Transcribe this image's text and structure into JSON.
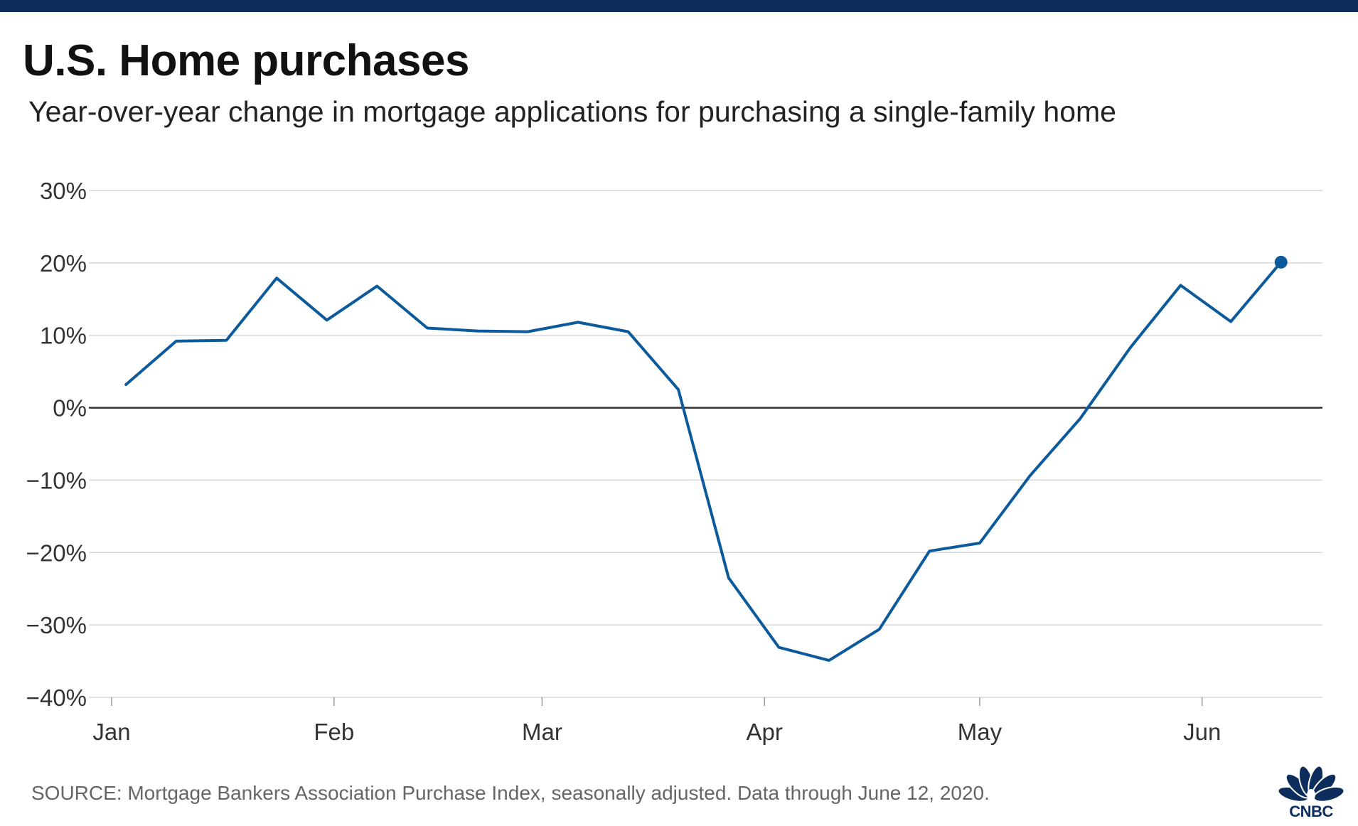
{
  "header": {
    "title": "U.S. Home purchases",
    "subtitle": "Year-over-year change in mortgage applications for purchasing a single-family home"
  },
  "footer": {
    "source": "SOURCE: Mortgage Bankers Association Purchase Index, seasonally adjusted. Data through June 12, 2020.",
    "logo_text": "CNBC"
  },
  "colors": {
    "top_bar": "#0d2d5c",
    "line": "#0b5a9c",
    "grid": "#d7d7d7",
    "zero_line": "#333333",
    "peacock": [
      "#7a2a8c",
      "#0070b8",
      "#009ad8",
      "#4db848",
      "#f5a623",
      "#e2231a"
    ]
  },
  "chart_data": {
    "type": "line",
    "title": "U.S. Home purchases",
    "subtitle": "Year-over-year change in mortgage applications for purchasing a single-family home",
    "xlabel": "",
    "ylabel": "",
    "x_start": "2020-01-01",
    "x_end": "2020-06-12",
    "xlim": [
      "2020-01-01",
      "2020-06-15"
    ],
    "ylim": [
      -40,
      30
    ],
    "y_ticks": [
      30,
      20,
      10,
      0,
      -10,
      -20,
      -30,
      -40
    ],
    "y_tick_labels": [
      "30%",
      "20%",
      "10%",
      "0%",
      "−10%",
      "−20%",
      "−30%",
      "−40%"
    ],
    "x_ticks": [
      "2020-01-01",
      "2020-02-01",
      "2020-03-01",
      "2020-04-01",
      "2020-05-01",
      "2020-06-01"
    ],
    "x_tick_labels": [
      "Jan",
      "Feb",
      "Mar",
      "Apr",
      "May",
      "Jun"
    ],
    "grid": true,
    "zero_line": true,
    "end_marker": true,
    "legend": "none",
    "series": [
      {
        "x": [
          "2020-01-03",
          "2020-01-10",
          "2020-01-17",
          "2020-01-24",
          "2020-01-31",
          "2020-02-07",
          "2020-02-14",
          "2020-02-21",
          "2020-02-28",
          "2020-03-06",
          "2020-03-13",
          "2020-03-20",
          "2020-03-27",
          "2020-04-03",
          "2020-04-10",
          "2020-04-17",
          "2020-04-24",
          "2020-05-01",
          "2020-05-08",
          "2020-05-15",
          "2020-05-22",
          "2020-05-29",
          "2020-06-05",
          "2020-06-12"
        ],
        "values": [
          3.2,
          9.2,
          9.3,
          17.9,
          12.1,
          16.8,
          11.0,
          10.6,
          10.5,
          11.8,
          10.5,
          2.5,
          -23.5,
          -33.1,
          -34.9,
          -30.6,
          -19.8,
          -18.7,
          -9.4,
          -1.5,
          8.3,
          16.9,
          11.9,
          20.1
        ]
      }
    ]
  }
}
